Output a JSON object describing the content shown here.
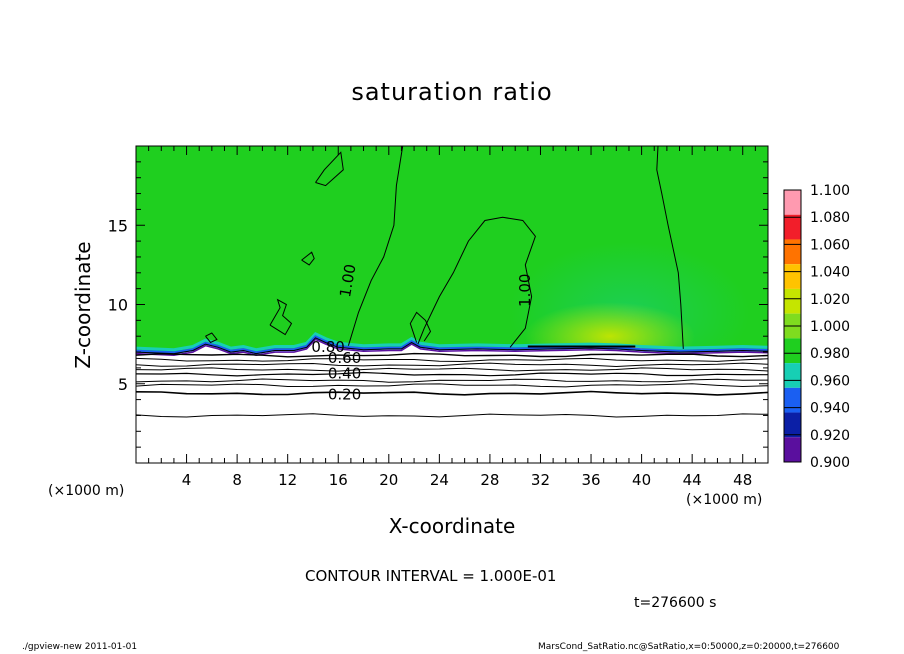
{
  "chart_data": {
    "type": "heatmap",
    "title": "saturation ratio",
    "xlabel": "X-coordinate",
    "ylabel": "Z-coordinate",
    "x_unit_label": "(×1000 m)",
    "xlim": [
      0,
      50
    ],
    "ylim": [
      0,
      20
    ],
    "x_ticks": [
      4,
      8,
      12,
      16,
      20,
      24,
      28,
      32,
      36,
      40,
      44,
      48
    ],
    "y_ticks": [
      5,
      10,
      15
    ],
    "colorbar": {
      "range": [
        0.9,
        1.1
      ],
      "levels": [
        "1.100",
        "1.080",
        "1.060",
        "1.040",
        "1.020",
        "1.000",
        "0.980",
        "0.960",
        "0.940",
        "0.920",
        "0.900"
      ],
      "colors": [
        "#ff9ab0",
        "#f21e2a",
        "#ff7300",
        "#ffc300",
        "#c5e500",
        "#7fdc1f",
        "#1fcf1f",
        "#17cfb4",
        "#1a5ff2",
        "#0b1fa6",
        "#5a0f9e"
      ]
    },
    "contour_labels": [
      {
        "text": "1.00",
        "x": 16.8,
        "z": 11.5,
        "rotate": -80
      },
      {
        "text": "1.00",
        "x": 30.8,
        "z": 10.9,
        "rotate": -90
      },
      {
        "text": "0.80",
        "x": 15.2,
        "z": 7.3,
        "rotate": 0
      },
      {
        "text": "0.60",
        "x": 16.5,
        "z": 6.6,
        "rotate": 0
      },
      {
        "text": "0.40",
        "x": 16.5,
        "z": 5.6,
        "rotate": 0
      },
      {
        "text": "0.20",
        "x": 16.5,
        "z": 4.3,
        "rotate": 0
      }
    ],
    "contour_interval": "CONTOUR INTERVAL = 1.000E-01",
    "time": "t=276600 s"
  },
  "footer": {
    "left": "./gpview-new   2011-01-01",
    "right": "MarsCond_SatRatio.nc@SatRatio,x=0:50000,z=0:20000,t=276600"
  },
  "colors": {
    "field": "#1fcf1f",
    "dry_layer": "#ffffff",
    "contour": "#000000"
  }
}
